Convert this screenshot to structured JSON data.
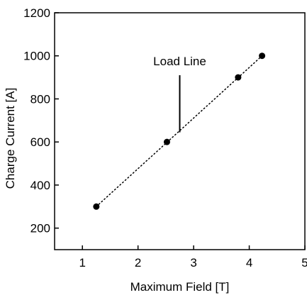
{
  "chart_data": {
    "type": "scatter",
    "title": "",
    "xlabel": "Maximum Field [T]",
    "ylabel": "Charge Current [A]",
    "xlim": [
      0.5,
      5
    ],
    "ylim": [
      100,
      1200
    ],
    "x_ticks": [
      1,
      2,
      3,
      4,
      5
    ],
    "y_ticks": [
      200,
      400,
      600,
      800,
      1000,
      1200
    ],
    "x_tick_labels": [
      "1",
      "2",
      "3",
      "4",
      "5"
    ],
    "y_tick_labels": [
      "200",
      "400",
      "600",
      "800",
      "1000",
      "1200"
    ],
    "grid": false,
    "legend": "none",
    "series": [
      {
        "points": [
          {
            "x": 1.25,
            "y": 300
          },
          {
            "x": 2.52,
            "y": 600
          },
          {
            "x": 3.8,
            "y": 900
          },
          {
            "x": 4.23,
            "y": 1000
          }
        ],
        "marker_color": "#000000"
      }
    ],
    "load_line": {
      "from": {
        "x": 1.25,
        "y": 300
      },
      "to": {
        "x": 4.23,
        "y": 1000
      },
      "style": "dotted",
      "color": "#000000"
    },
    "annotation": {
      "text": "Load Line",
      "arrow_x": 2.75,
      "arrow_y_top": 910,
      "arrow_y_bottom": 645
    }
  }
}
